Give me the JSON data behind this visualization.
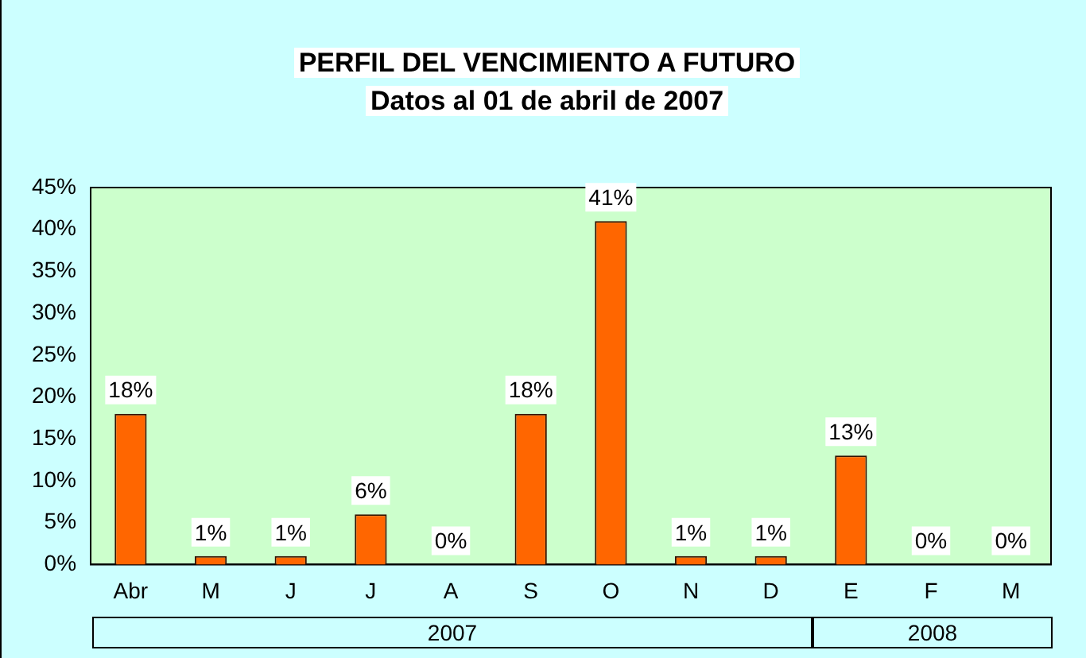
{
  "chart_data": {
    "type": "bar",
    "title": "PERFIL DEL VENCIMIENTO A FUTURO",
    "subtitle": "Datos al 01 de abril de 2007",
    "categories": [
      "Abr",
      "M",
      "J",
      "J",
      "A",
      "S",
      "O",
      "N",
      "D",
      "E",
      "F",
      "M"
    ],
    "values": [
      18,
      1,
      1,
      6,
      0,
      18,
      41,
      1,
      1,
      13,
      0,
      0
    ],
    "value_labels": [
      "18%",
      "1%",
      "1%",
      "6%",
      "0%",
      "18%",
      "41%",
      "1%",
      "1%",
      "13%",
      "0%",
      "0%"
    ],
    "color": "#ff6600",
    "ylim": [
      0,
      45
    ],
    "yticks": [
      {
        "value": 0,
        "label": "0%"
      },
      {
        "value": 5,
        "label": "5%"
      },
      {
        "value": 10,
        "label": "10%"
      },
      {
        "value": 15,
        "label": "15%"
      },
      {
        "value": 20,
        "label": "20%"
      },
      {
        "value": 25,
        "label": "25%"
      },
      {
        "value": 30,
        "label": "30%"
      },
      {
        "value": 35,
        "label": "35%"
      },
      {
        "value": 40,
        "label": "40%"
      },
      {
        "value": 45,
        "label": "45%"
      }
    ],
    "annotations": [
      "2007",
      "2008"
    ],
    "grid": false,
    "legend": false
  }
}
